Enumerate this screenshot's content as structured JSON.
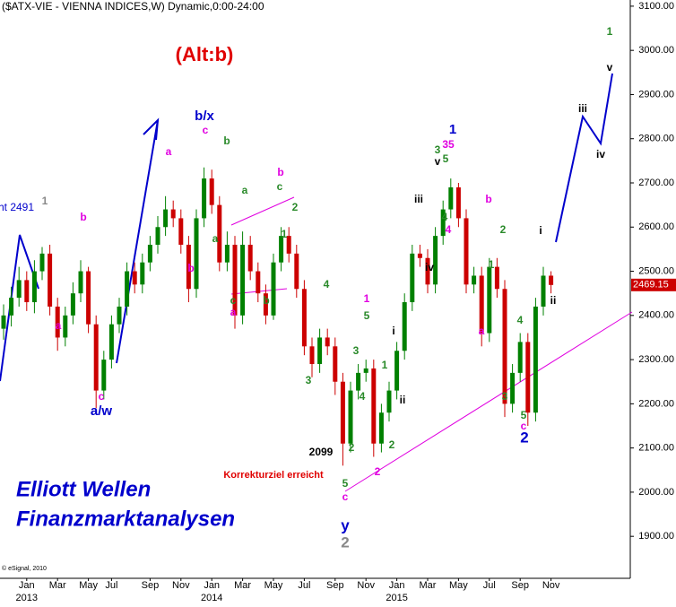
{
  "chart_data": {
    "type": "candlestick",
    "title": "($ATX-VIE - VIENNA INDICES,W) Dynamic,0:00-24:00",
    "credit": "© eSignal, 2010",
    "categories": [
      null,
      null,
      null,
      "Jan",
      null,
      null,
      null,
      "Mar",
      null,
      null,
      null,
      "May",
      null,
      null,
      "Jul",
      null,
      null,
      null,
      null,
      "Sep",
      null,
      null,
      null,
      "Nov",
      null,
      null,
      null,
      "Jan",
      null,
      null,
      null,
      "Mar",
      null,
      null,
      null,
      "May",
      null,
      null,
      null,
      "Jul",
      null,
      null,
      null,
      "Sep",
      null,
      null,
      null,
      "Nov",
      null,
      null,
      null,
      "Jan",
      null,
      null,
      null,
      "Mar",
      null,
      null,
      null,
      "May",
      null,
      null,
      null,
      "Jul",
      null,
      null,
      null,
      "Sep",
      null,
      null,
      null,
      "Nov"
    ],
    "year_labels": [
      "2013",
      "2014",
      "2015"
    ],
    "open": [
      2370,
      2400,
      2440,
      2480,
      2430,
      2500,
      2540,
      2420,
      2350,
      2400,
      2450,
      2500,
      2380,
      2230,
      2300,
      2380,
      2420,
      2500,
      2470,
      2520,
      2560,
      2600,
      2640,
      2620,
      2560,
      2460,
      2620,
      2710,
      2650,
      2520,
      2560,
      2400,
      2560,
      2500,
      2450,
      2400,
      2520,
      2580,
      2540,
      2460,
      2330,
      2290,
      2350,
      2330,
      2250,
      2110,
      2230,
      2270,
      2280,
      2110,
      2180,
      2230,
      2320,
      2430,
      2540,
      2530,
      2470,
      2580,
      2640,
      2690,
      2620,
      2470,
      2490,
      2360,
      2510,
      2460,
      2200,
      2270,
      2340,
      2180,
      2420,
      2490
    ],
    "high": [
      2425,
      2465,
      2510,
      2500,
      2525,
      2555,
      2560,
      2440,
      2420,
      2475,
      2525,
      2510,
      2400,
      2320,
      2400,
      2440,
      2520,
      2520,
      2540,
      2580,
      2625,
      2670,
      2660,
      2640,
      2580,
      2640,
      2735,
      2730,
      2670,
      2590,
      2580,
      2590,
      2580,
      2520,
      2470,
      2540,
      2600,
      2600,
      2560,
      2480,
      2350,
      2370,
      2370,
      2350,
      2270,
      2250,
      2290,
      2300,
      2300,
      2200,
      2250,
      2340,
      2450,
      2560,
      2560,
      2550,
      2600,
      2660,
      2710,
      2700,
      2640,
      2510,
      2510,
      2530,
      2530,
      2480,
      2290,
      2360,
      2360,
      2440,
      2510,
      2500
    ],
    "low": [
      2345,
      2375,
      2420,
      2410,
      2405,
      2480,
      2400,
      2320,
      2330,
      2380,
      2430,
      2360,
      2190,
      2210,
      2280,
      2360,
      2400,
      2450,
      2450,
      2500,
      2540,
      2580,
      2600,
      2540,
      2430,
      2440,
      2600,
      2630,
      2500,
      2500,
      2370,
      2380,
      2480,
      2430,
      2380,
      2390,
      2500,
      2520,
      2440,
      2310,
      2260,
      2270,
      2310,
      2220,
      2060,
      2090,
      2210,
      2250,
      2080,
      2090,
      2160,
      2210,
      2300,
      2410,
      2510,
      2450,
      2450,
      2560,
      2620,
      2600,
      2450,
      2450,
      2330,
      2340,
      2440,
      2170,
      2180,
      2250,
      2150,
      2160,
      2400,
      2450
    ],
    "close": [
      2400,
      2440,
      2480,
      2430,
      2500,
      2540,
      2420,
      2350,
      2400,
      2450,
      2500,
      2380,
      2230,
      2300,
      2380,
      2420,
      2500,
      2470,
      2520,
      2560,
      2600,
      2640,
      2620,
      2560,
      2460,
      2620,
      2710,
      2650,
      2520,
      2560,
      2400,
      2560,
      2500,
      2450,
      2400,
      2520,
      2580,
      2540,
      2460,
      2330,
      2290,
      2350,
      2330,
      2250,
      2110,
      2230,
      2270,
      2280,
      2110,
      2180,
      2230,
      2320,
      2430,
      2540,
      2530,
      2470,
      2580,
      2640,
      2690,
      2620,
      2470,
      2490,
      2360,
      2510,
      2460,
      2200,
      2270,
      2340,
      2180,
      2420,
      2490,
      2469
    ],
    "up_color": "#008000",
    "down_color": "#cc0000",
    "last_label": "2469.15",
    "ylim": [
      1805,
      3114
    ],
    "yticks": [
      {
        "value": 1900,
        "label": "1900.00"
      },
      {
        "value": 2000,
        "label": "2000.00"
      },
      {
        "value": 2100,
        "label": "2100.00"
      },
      {
        "value": 2200,
        "label": "2200.00"
      },
      {
        "value": 2300,
        "label": "2300.00"
      },
      {
        "value": 2400,
        "label": "2400.00"
      },
      {
        "value": 2500,
        "label": "2500.00"
      },
      {
        "value": 2600,
        "label": "2600.00"
      },
      {
        "value": 2700,
        "label": "2700.00"
      },
      {
        "value": 2800,
        "label": "2800.00"
      },
      {
        "value": 2900,
        "label": "2900.00"
      },
      {
        "value": 3000,
        "label": "3000.00"
      },
      {
        "value": 3100,
        "label": "3100.00"
      }
    ],
    "annotations": [
      {
        "text": "ht 2491",
        "color": "#0000cc"
      },
      {
        "text": "1",
        "color": "#888888"
      },
      {
        "text": "b",
        "color": "#e000e0"
      },
      {
        "text": "a",
        "color": "#e000e0"
      },
      {
        "text": "c",
        "color": "#e000e0"
      },
      {
        "text": "a/w",
        "color": "#0000cc"
      },
      {
        "text": "a",
        "color": "#e000e0"
      },
      {
        "text": "b/x",
        "color": "#0000cc"
      },
      {
        "text": "c",
        "color": "#e000e0"
      },
      {
        "text": "b",
        "color": "#2a8a2a"
      },
      {
        "text": "a",
        "color": "#2a8a2a"
      },
      {
        "text": "b",
        "color": "#e000e0"
      },
      {
        "text": "a",
        "color": "#2a8a2a"
      },
      {
        "text": "c",
        "color": "#2a8a2a"
      },
      {
        "text": "b",
        "color": "#e000e0"
      },
      {
        "text": "2",
        "color": "#2a8a2a"
      },
      {
        "text": "1",
        "color": "#2a8a2a"
      },
      {
        "text": "c",
        "color": "#2a8a2a"
      },
      {
        "text": "a",
        "color": "#e000e0"
      },
      {
        "text": "b",
        "color": "#2a8a2a"
      },
      {
        "text": "4",
        "color": "#2a8a2a"
      },
      {
        "text": "3",
        "color": "#2a8a2a"
      },
      {
        "text": "5",
        "color": "#2a8a2a"
      },
      {
        "text": "1",
        "color": "#e000e0"
      },
      {
        "text": "3",
        "color": "#2a8a2a"
      },
      {
        "text": "4",
        "color": "#2a8a2a"
      },
      {
        "text": "1",
        "color": "#2a8a2a"
      },
      {
        "text": "2",
        "color": "#2a8a2a"
      },
      {
        "text": "i",
        "color": "#000000"
      },
      {
        "text": "ii",
        "color": "#000000"
      },
      {
        "text": "2",
        "color": "#2a8a2a"
      },
      {
        "text": "2099",
        "color": "#000000"
      },
      {
        "text": "Korrekturziel erreicht",
        "color": "#e00000"
      },
      {
        "text": "2",
        "color": "#e000e0"
      },
      {
        "text": "5",
        "color": "#2a8a2a"
      },
      {
        "text": "c",
        "color": "#e000e0"
      },
      {
        "text": "y",
        "color": "#0000cc"
      },
      {
        "text": "2",
        "color": "#888888"
      },
      {
        "text": "iii",
        "color": "#000000"
      },
      {
        "text": "iv",
        "color": "#000000"
      },
      {
        "text": "1",
        "color": "#0000cc"
      },
      {
        "text": "3",
        "color": "#2a8a2a"
      },
      {
        "text": "5",
        "color": "#2a8a2a"
      },
      {
        "text": "v",
        "color": "#000000"
      },
      {
        "text": "35",
        "color": "#e000e0"
      },
      {
        "text": "4",
        "color": "#2a8a2a"
      },
      {
        "text": "4",
        "color": "#e000e0"
      },
      {
        "text": "b",
        "color": "#e000e0"
      },
      {
        "text": "2",
        "color": "#2a8a2a"
      },
      {
        "text": "1",
        "color": "#2a8a2a"
      },
      {
        "text": "a",
        "color": "#e000e0"
      },
      {
        "text": "3",
        "color": "#2a8a2a"
      },
      {
        "text": "4",
        "color": "#2a8a2a"
      },
      {
        "text": "5",
        "color": "#2a8a2a"
      },
      {
        "text": "c",
        "color": "#e000e0"
      },
      {
        "text": "2",
        "color": "#0000cc"
      },
      {
        "text": "i",
        "color": "#000000"
      },
      {
        "text": "ii",
        "color": "#000000"
      },
      {
        "text": "iii",
        "color": "#000000"
      },
      {
        "text": "iv",
        "color": "#000000"
      },
      {
        "text": "1",
        "color": "#2a8a2a"
      },
      {
        "text": "v",
        "color": "#000000"
      },
      {
        "text": "(Alt:b)",
        "color": "#e00000"
      },
      {
        "text": "Elliott Wellen",
        "color": "#0000cc"
      },
      {
        "text": "Finanzmarktanalysen",
        "color": "#0000cc"
      }
    ]
  }
}
